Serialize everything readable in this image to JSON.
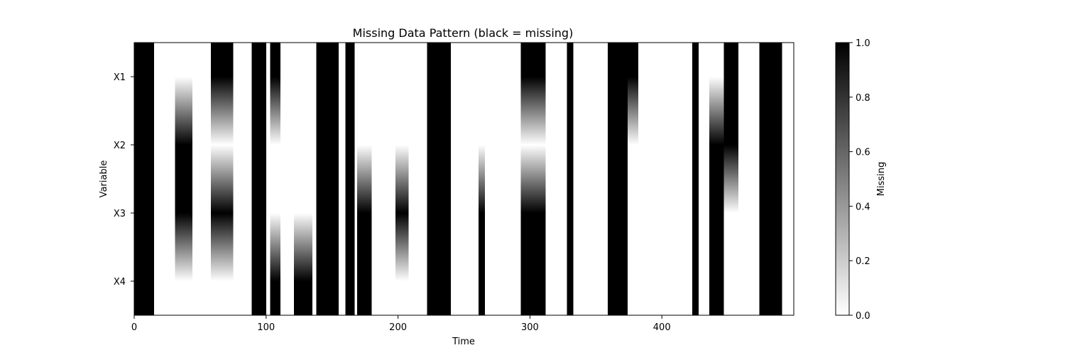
{
  "chart_data": {
    "type": "heatmap",
    "title": "Missing Data Pattern (black = missing)",
    "xlabel": "Time",
    "ylabel": "Variable",
    "xlim": [
      0,
      500
    ],
    "xticks": [
      0,
      100,
      200,
      300,
      400
    ],
    "variables": [
      "X1",
      "X2",
      "X3",
      "X4"
    ],
    "interpolation": "smooth (bilinear)",
    "colormap": {
      "name": "gray_r",
      "low_color": "#ffffff",
      "high_color": "#000000"
    },
    "colorbar": {
      "label": "Missing",
      "range": [
        0,
        1
      ],
      "ticks": [
        "0.0",
        "0.2",
        "0.4",
        "0.6",
        "0.8",
        "1.0"
      ]
    },
    "missing_intervals": [
      {
        "start": 0,
        "end": 15,
        "variables": [
          "X1",
          "X2",
          "X3",
          "X4"
        ]
      },
      {
        "start": 31,
        "end": 44,
        "variables": [
          "X2",
          "X3"
        ]
      },
      {
        "start": 58,
        "end": 75,
        "variables": [
          "X1",
          "X3"
        ]
      },
      {
        "start": 89,
        "end": 100,
        "variables": [
          "X1",
          "X2",
          "X3",
          "X4"
        ]
      },
      {
        "start": 103,
        "end": 111,
        "variables": [
          "X1",
          "X4"
        ]
      },
      {
        "start": 121,
        "end": 135,
        "variables": [
          "X4"
        ]
      },
      {
        "start": 138,
        "end": 155,
        "variables": [
          "X1",
          "X2",
          "X3",
          "X4"
        ]
      },
      {
        "start": 160,
        "end": 167,
        "variables": [
          "X1",
          "X2",
          "X3",
          "X4"
        ]
      },
      {
        "start": 169,
        "end": 180,
        "variables": [
          "X3",
          "X4"
        ]
      },
      {
        "start": 198,
        "end": 208,
        "variables": [
          "X3"
        ]
      },
      {
        "start": 222,
        "end": 240,
        "variables": [
          "X1",
          "X2",
          "X3",
          "X4"
        ]
      },
      {
        "start": 261,
        "end": 266,
        "variables": [
          "X3",
          "X4"
        ]
      },
      {
        "start": 293,
        "end": 312,
        "variables": [
          "X1",
          "X3",
          "X4"
        ]
      },
      {
        "start": 328,
        "end": 333,
        "variables": [
          "X1",
          "X2",
          "X3",
          "X4"
        ]
      },
      {
        "start": 359,
        "end": 374,
        "variables": [
          "X1",
          "X2",
          "X3",
          "X4"
        ]
      },
      {
        "start": 374,
        "end": 382,
        "variables": [
          "X1"
        ]
      },
      {
        "start": 423,
        "end": 428,
        "variables": [
          "X1",
          "X2",
          "X3",
          "X4"
        ]
      },
      {
        "start": 436,
        "end": 447,
        "variables": [
          "X2",
          "X3",
          "X4"
        ]
      },
      {
        "start": 447,
        "end": 458,
        "variables": [
          "X1",
          "X2"
        ]
      },
      {
        "start": 474,
        "end": 491,
        "variables": [
          "X1",
          "X2",
          "X3",
          "X4"
        ]
      }
    ]
  }
}
